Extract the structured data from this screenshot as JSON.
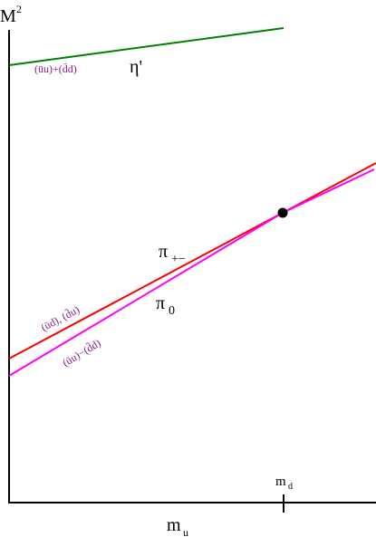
{
  "y_axis": {
    "label": "M",
    "superscript": "2"
  },
  "x_axis": {
    "label": "m",
    "subscript": "u"
  },
  "x_marker": {
    "label": "m",
    "subscript": "d"
  },
  "curves": [
    {
      "state": "η'",
      "content": "(ūu)+(d̄d)"
    },
    {
      "state": "π",
      "subscript": "+−",
      "content": "(ūd), (d̄u)"
    },
    {
      "state": "π",
      "subscript": "0",
      "content": "(ūu)−(d̄d)"
    }
  ]
}
